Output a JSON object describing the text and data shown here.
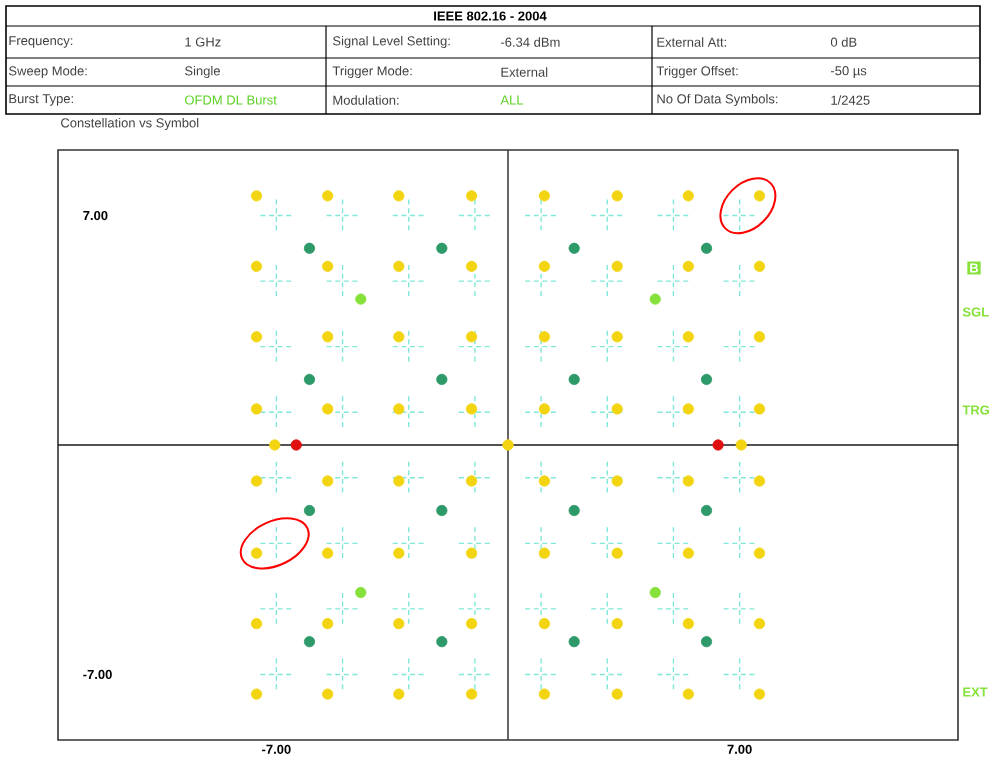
{
  "chart_data": {
    "type": "scatter",
    "title": "IEEE 802.16 - 2004",
    "subtitle": "Constellation vs Symbol",
    "annotations": [
      "Frequency:",
      "1 GHz",
      "Signal Level Setting:",
      "-6.34 dBm",
      "External Att:",
      "0 dB",
      "Sweep Mode:",
      "Single",
      "Trigger Mode:",
      "External",
      "Trigger Offset:",
      "-50 µs",
      "Burst Type:",
      "OFDM DL Burst",
      "Modulation:",
      "ALL",
      "No Of Data Symbols:",
      "1/2425",
      "B",
      "SGL",
      "TRG",
      "EXT"
    ],
    "xlim": [
      -13.6,
      13.6
    ],
    "ylim": [
      -9,
      9
    ],
    "xticks": [
      {
        "value": -7,
        "label": "-7.00"
      },
      {
        "value": 7,
        "label": "7.00"
      }
    ],
    "yticks": [
      {
        "value": -7,
        "label": "-7.00"
      },
      {
        "value": 7,
        "label": "7.00"
      }
    ],
    "ref_lines": [
      {
        "axis": "x",
        "value": 0,
        "color": "#404040"
      },
      {
        "axis": "y",
        "value": 0,
        "color": "#1a1a1a"
      }
    ],
    "series": [
      {
        "color": "#80e8d8",
        "marker": "cross",
        "x": [
          -7,
          -5,
          -3,
          -1,
          1,
          3,
          5,
          7,
          -7,
          -5,
          -3,
          -1,
          1,
          3,
          5,
          7,
          -7,
          -5,
          -3,
          -1,
          1,
          3,
          5,
          7,
          -7,
          -5,
          -3,
          -1,
          1,
          3,
          5,
          7,
          -7,
          -5,
          -3,
          -1,
          1,
          3,
          5,
          7,
          -7,
          -5,
          -3,
          -1,
          1,
          3,
          5,
          7,
          -7,
          -5,
          -3,
          -1,
          1,
          3,
          5,
          7,
          -7,
          -5,
          -3,
          -1,
          1,
          3,
          5,
          7
        ],
        "values": [
          7,
          7,
          7,
          7,
          7,
          7,
          7,
          7,
          5,
          5,
          5,
          5,
          5,
          5,
          5,
          5,
          3,
          3,
          3,
          3,
          3,
          3,
          3,
          3,
          1,
          1,
          1,
          1,
          1,
          1,
          1,
          1,
          -1,
          -1,
          -1,
          -1,
          -1,
          -1,
          -1,
          -1,
          -3,
          -3,
          -3,
          -3,
          -3,
          -3,
          -3,
          -3,
          -5,
          -5,
          -5,
          -5,
          -5,
          -5,
          -5,
          -5,
          -7,
          -7,
          -7,
          -7,
          -7,
          -7,
          -7,
          -7
        ]
      },
      {
        "color": "#f2d410",
        "marker": "circle",
        "x": [
          -7.6,
          -5.45,
          -3.3,
          -1.1,
          1.1,
          3.3,
          5.45,
          7.6,
          -7.6,
          -5.45,
          -3.3,
          -1.1,
          1.1,
          3.3,
          5.45,
          7.6,
          -7.6,
          -5.45,
          -3.3,
          -1.1,
          1.1,
          3.3,
          5.45,
          7.6,
          -7.6,
          -5.45,
          -3.3,
          -1.1,
          1.1,
          3.3,
          5.45,
          7.6,
          -7.6,
          -5.45,
          -3.3,
          -1.1,
          1.1,
          3.3,
          5.45,
          7.6,
          -7.6,
          -5.45,
          -3.3,
          -1.1,
          1.1,
          3.3,
          5.45,
          7.6,
          -7.6,
          -5.45,
          -3.3,
          -1.1,
          1.1,
          3.3,
          5.45,
          7.6,
          -7.6,
          -5.45,
          -3.3,
          -1.1,
          1.1,
          3.3,
          5.45,
          7.6,
          -7.05,
          7.05,
          0
        ],
        "values": [
          7.6,
          7.6,
          7.6,
          7.6,
          7.6,
          7.6,
          7.6,
          7.6,
          5.45,
          5.45,
          5.45,
          5.45,
          5.45,
          5.45,
          5.45,
          5.45,
          3.3,
          3.3,
          3.3,
          3.3,
          3.3,
          3.3,
          3.3,
          3.3,
          1.1,
          1.1,
          1.1,
          1.1,
          1.1,
          1.1,
          1.1,
          1.1,
          -1.1,
          -1.1,
          -1.1,
          -1.1,
          -1.1,
          -1.1,
          -1.1,
          -1.1,
          -3.3,
          -3.3,
          -3.3,
          -3.3,
          -3.3,
          -3.3,
          -3.3,
          -3.3,
          -5.45,
          -5.45,
          -5.45,
          -5.45,
          -5.45,
          -5.45,
          -5.45,
          -5.45,
          -7.6,
          -7.6,
          -7.6,
          -7.6,
          -7.6,
          -7.6,
          -7.6,
          -7.6,
          0,
          0,
          0
        ]
      },
      {
        "color": "#2e9a6a",
        "marker": "circle",
        "x": [
          -6,
          -2,
          2,
          6,
          -6,
          -2,
          2,
          6,
          -6,
          -2,
          2,
          6,
          -6,
          -2,
          2,
          6
        ],
        "values": [
          6,
          6,
          6,
          6,
          2,
          2,
          2,
          2,
          -2,
          -2,
          -2,
          -2,
          -6,
          -6,
          -6,
          -6
        ]
      },
      {
        "color": "#86e23a",
        "marker": "circle",
        "x": [
          -4.45,
          4.45,
          -4.45,
          4.45
        ],
        "values": [
          4.45,
          4.45,
          -4.5,
          -4.5
        ]
      },
      {
        "color": "#e01010",
        "marker": "circle",
        "x": [
          -6.4,
          6.35
        ],
        "values": [
          0,
          0
        ]
      }
    ]
  }
}
